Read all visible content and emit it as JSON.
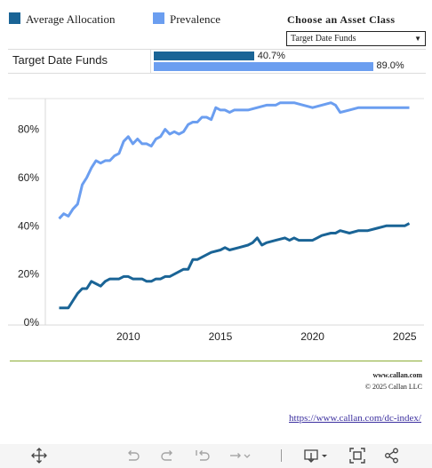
{
  "legend": {
    "items": [
      {
        "label": "Average Allocation",
        "color": "#1a6496"
      },
      {
        "label": "Prevalence",
        "color": "#6b9ef0"
      }
    ]
  },
  "selector": {
    "title": "Choose an Asset Class",
    "selected": "Target Date Funds"
  },
  "summary": {
    "row_label": "Target Date Funds",
    "allocation_label": "40.7%",
    "allocation_value": 40.7,
    "prevalence_label": "89.0%",
    "prevalence_value": 89.0
  },
  "chart_data": {
    "type": "line",
    "title": "",
    "xlabel": "",
    "ylabel": "",
    "xlim": [
      2005.5,
      2026.0
    ],
    "ylim": [
      0,
      92
    ],
    "x_ticks": [
      2010,
      2015,
      2020,
      2025
    ],
    "x_tick_labels": [
      "2010",
      "2015",
      "2020",
      "2025"
    ],
    "y_ticks": [
      0,
      20,
      40,
      60,
      80
    ],
    "y_tick_labels": [
      "0%",
      "20%",
      "40%",
      "60%",
      "80%"
    ],
    "grid": false,
    "legend_position": "top-left",
    "series": [
      {
        "name": "Prevalence",
        "color": "#6b9ef0",
        "points": [
          [
            2006.25,
            43
          ],
          [
            2006.5,
            45
          ],
          [
            2006.75,
            44
          ],
          [
            2007.0,
            47
          ],
          [
            2007.25,
            49
          ],
          [
            2007.5,
            57
          ],
          [
            2007.75,
            60
          ],
          [
            2008.0,
            64
          ],
          [
            2008.25,
            67
          ],
          [
            2008.5,
            66
          ],
          [
            2008.75,
            67
          ],
          [
            2009.0,
            67
          ],
          [
            2009.25,
            69
          ],
          [
            2009.5,
            70
          ],
          [
            2009.75,
            75
          ],
          [
            2010.0,
            77
          ],
          [
            2010.25,
            74
          ],
          [
            2010.5,
            76
          ],
          [
            2010.75,
            74
          ],
          [
            2011.0,
            74
          ],
          [
            2011.25,
            73
          ],
          [
            2011.5,
            76
          ],
          [
            2011.75,
            77
          ],
          [
            2012.0,
            80
          ],
          [
            2012.25,
            78
          ],
          [
            2012.5,
            79
          ],
          [
            2012.75,
            78
          ],
          [
            2013.0,
            79
          ],
          [
            2013.25,
            82
          ],
          [
            2013.5,
            83
          ],
          [
            2013.75,
            83
          ],
          [
            2014.0,
            85
          ],
          [
            2014.25,
            85
          ],
          [
            2014.5,
            84
          ],
          [
            2014.75,
            89
          ],
          [
            2015.0,
            88
          ],
          [
            2015.25,
            88
          ],
          [
            2015.5,
            87
          ],
          [
            2015.75,
            88
          ],
          [
            2016.0,
            88
          ],
          [
            2016.5,
            88
          ],
          [
            2017.0,
            89
          ],
          [
            2017.5,
            90
          ],
          [
            2018.0,
            90
          ],
          [
            2018.25,
            91
          ],
          [
            2018.5,
            91
          ],
          [
            2018.75,
            91
          ],
          [
            2019.0,
            91
          ],
          [
            2019.5,
            90
          ],
          [
            2020.0,
            89
          ],
          [
            2020.5,
            90
          ],
          [
            2021.0,
            91
          ],
          [
            2021.25,
            90
          ],
          [
            2021.5,
            87
          ],
          [
            2022.0,
            88
          ],
          [
            2022.5,
            89
          ],
          [
            2023.0,
            89
          ],
          [
            2023.5,
            89
          ],
          [
            2024.0,
            89
          ],
          [
            2024.5,
            89
          ],
          [
            2025.0,
            89
          ],
          [
            2025.25,
            89
          ]
        ]
      },
      {
        "name": "Average Allocation",
        "color": "#1a6496",
        "points": [
          [
            2006.25,
            6
          ],
          [
            2006.5,
            6
          ],
          [
            2006.75,
            6
          ],
          [
            2007.0,
            9
          ],
          [
            2007.25,
            12
          ],
          [
            2007.5,
            14
          ],
          [
            2007.75,
            14
          ],
          [
            2008.0,
            17
          ],
          [
            2008.25,
            16
          ],
          [
            2008.5,
            15
          ],
          [
            2008.75,
            17
          ],
          [
            2009.0,
            18
          ],
          [
            2009.25,
            18
          ],
          [
            2009.5,
            18
          ],
          [
            2009.75,
            19
          ],
          [
            2010.0,
            19
          ],
          [
            2010.25,
            18
          ],
          [
            2010.5,
            18
          ],
          [
            2010.75,
            18
          ],
          [
            2011.0,
            17
          ],
          [
            2011.25,
            17
          ],
          [
            2011.5,
            18
          ],
          [
            2011.75,
            18
          ],
          [
            2012.0,
            19
          ],
          [
            2012.25,
            19
          ],
          [
            2012.5,
            20
          ],
          [
            2012.75,
            21
          ],
          [
            2013.0,
            22
          ],
          [
            2013.25,
            22
          ],
          [
            2013.5,
            26
          ],
          [
            2013.75,
            26
          ],
          [
            2014.0,
            27
          ],
          [
            2014.5,
            29
          ],
          [
            2015.0,
            30
          ],
          [
            2015.25,
            31
          ],
          [
            2015.5,
            30
          ],
          [
            2016.0,
            31
          ],
          [
            2016.5,
            32
          ],
          [
            2016.75,
            33
          ],
          [
            2017.0,
            35
          ],
          [
            2017.25,
            32
          ],
          [
            2017.5,
            33
          ],
          [
            2018.0,
            34
          ],
          [
            2018.5,
            35
          ],
          [
            2018.75,
            34
          ],
          [
            2019.0,
            35
          ],
          [
            2019.25,
            34
          ],
          [
            2019.5,
            34
          ],
          [
            2020.0,
            34
          ],
          [
            2020.25,
            35
          ],
          [
            2020.5,
            36
          ],
          [
            2021.0,
            37
          ],
          [
            2021.25,
            37
          ],
          [
            2021.5,
            38
          ],
          [
            2022.0,
            37
          ],
          [
            2022.5,
            38
          ],
          [
            2023.0,
            38
          ],
          [
            2023.5,
            39
          ],
          [
            2024.0,
            40
          ],
          [
            2024.5,
            40
          ],
          [
            2025.0,
            40
          ],
          [
            2025.25,
            41
          ]
        ]
      }
    ]
  },
  "footer": {
    "website": "www.callan.com",
    "copyright": "© 2025 Callan LLC",
    "source_url": "https://www.callan.com/dc-index/"
  },
  "toolbar": {
    "icons": [
      "move-icon",
      "undo-icon",
      "redo-icon",
      "revert-icon",
      "refresh-icon",
      "download-icon",
      "fullscreen-icon",
      "share-icon"
    ]
  }
}
